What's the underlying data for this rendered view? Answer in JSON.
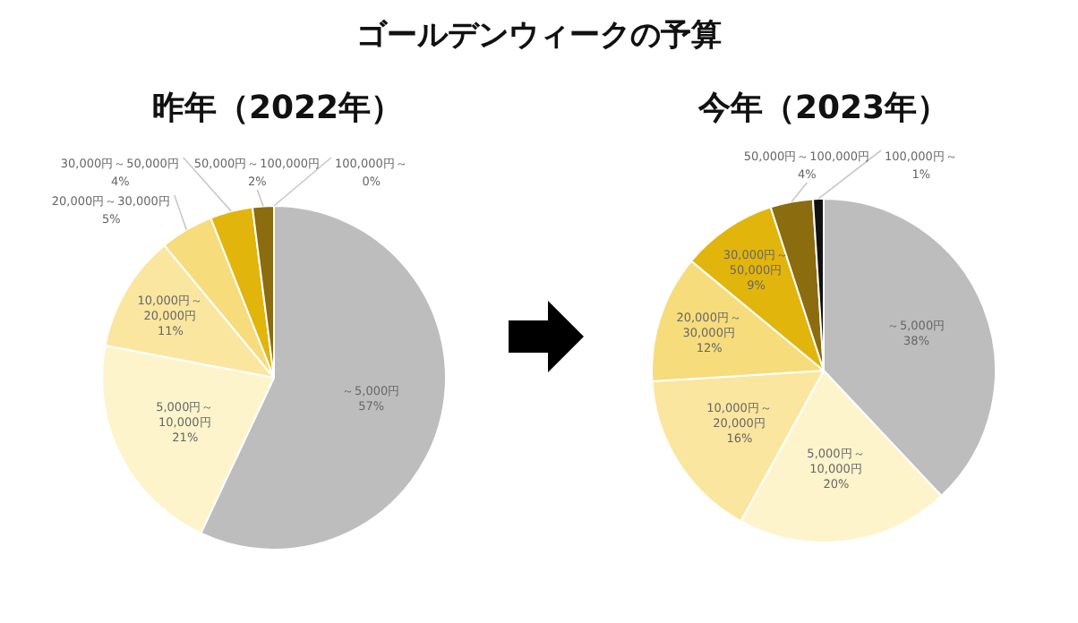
{
  "chart_data": [
    {
      "type": "pie",
      "title": "ゴールデンウィークの予算",
      "subtitle": "昨年（2022年）",
      "categories": [
        "～5,000円",
        "5,000円～10,000円",
        "10,000円～20,000円",
        "20,000円～30,000円",
        "30,000円～50,000円",
        "50,000円～100,000円",
        "100,000円～"
      ],
      "values": [
        57,
        21,
        11,
        5,
        4,
        2,
        0
      ],
      "value_labels": [
        "57%",
        "21%",
        "11%",
        "5%",
        "4%",
        "2%",
        "0%"
      ],
      "colors": [
        "#bdbdbd",
        "#fdf4cc",
        "#fbe6a0",
        "#f7dc7c",
        "#e2b50c",
        "#8b6c0e",
        "#111111"
      ]
    },
    {
      "type": "pie",
      "title": "今年（2023年）",
      "categories": [
        "～5,000円",
        "5,000円～10,000円",
        "10,000円～20,000円",
        "20,000円～30,000円",
        "30,000円～50,000円",
        "50,000円～100,000円",
        "100,000円～"
      ],
      "values": [
        38,
        20,
        16,
        12,
        9,
        4,
        1
      ],
      "value_labels": [
        "38%",
        "20%",
        "16%",
        "12%",
        "9%",
        "4%",
        "1%"
      ],
      "colors": [
        "#bdbdbd",
        "#fdf4cc",
        "#fbe6a0",
        "#f7dc7c",
        "#e2b50c",
        "#8b6c0e",
        "#111111"
      ]
    }
  ]
}
